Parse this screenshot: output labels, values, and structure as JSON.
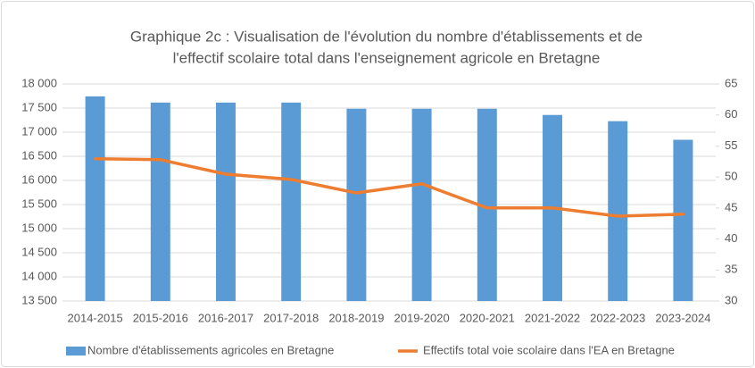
{
  "chart_data": {
    "type": "bar-line",
    "title": [
      "Graphique 2c : Visualisation de l'évolution du nombre d'établissements et de",
      "l'effectif scolaire total dans l'enseignement agricole en Bretagne"
    ],
    "categories": [
      "2014-2015",
      "2015-2016",
      "2016-2017",
      "2017-2018",
      "2018-2019",
      "2019-2020",
      "2020-2021",
      "2021-2022",
      "2022-2023",
      "2023-2024"
    ],
    "series": [
      {
        "name": "Nombre d'établissements agricoles en Bretagne",
        "type": "bar",
        "axis": "y2",
        "color": "#5b9bd5",
        "values": [
          63,
          62,
          62,
          62,
          61,
          61,
          61,
          60,
          59,
          56
        ]
      },
      {
        "name": "Effectifs total voie scolaire dans l'EA en Bretagne",
        "type": "line",
        "axis": "y",
        "color": "#ed7d31",
        "values": [
          16450,
          16430,
          16130,
          16020,
          15740,
          15930,
          15430,
          15430,
          15260,
          15300
        ]
      }
    ],
    "ylim": [
      13500,
      18000
    ],
    "yticks": [
      {
        "value": 13500,
        "label": "13 500"
      },
      {
        "value": 14000,
        "label": "14 000"
      },
      {
        "value": 14500,
        "label": "14 500"
      },
      {
        "value": 15000,
        "label": "15 000"
      },
      {
        "value": 15500,
        "label": "15 500"
      },
      {
        "value": 16000,
        "label": "16 000"
      },
      {
        "value": 16500,
        "label": "16 500"
      },
      {
        "value": 17000,
        "label": "17 000"
      },
      {
        "value": 17500,
        "label": "17 500"
      },
      {
        "value": 18000,
        "label": "18 000"
      }
    ],
    "y2lim": [
      30,
      65
    ],
    "y2ticks": [
      30,
      35,
      40,
      45,
      50,
      55,
      60,
      65
    ],
    "grid": true,
    "legend": "bottom"
  }
}
